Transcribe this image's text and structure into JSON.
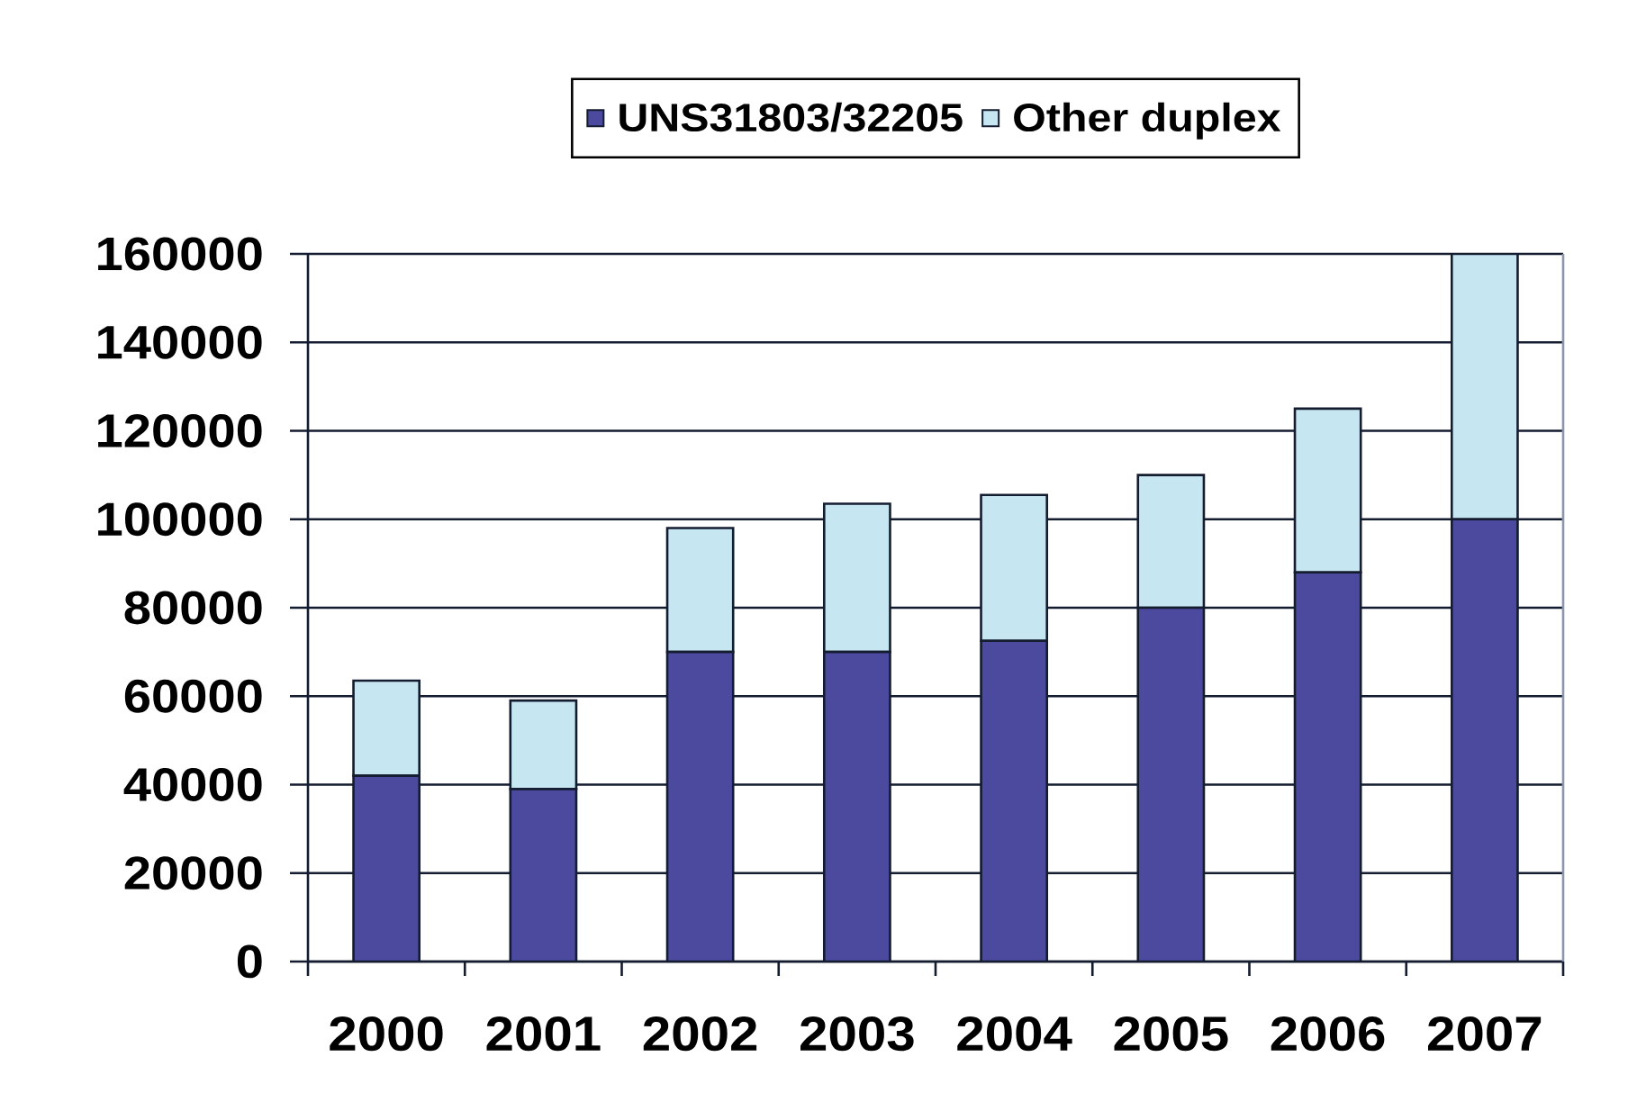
{
  "chart_data": {
    "type": "bar",
    "stacked": true,
    "categories": [
      "2000",
      "2001",
      "2002",
      "2003",
      "2004",
      "2005",
      "2006",
      "2007"
    ],
    "series": [
      {
        "name": "UNS31803/32205",
        "color": "#4b4a9e",
        "values": [
          42000,
          39000,
          70000,
          70000,
          72500,
          80000,
          88000,
          100000
        ]
      },
      {
        "name": "Other duplex",
        "color": "#c6e6f2",
        "values": [
          21500,
          20000,
          28000,
          33500,
          33000,
          30000,
          37000,
          60000
        ]
      }
    ],
    "ylim": [
      0,
      160000
    ],
    "yticks": [
      0,
      20000,
      40000,
      60000,
      80000,
      100000,
      120000,
      140000,
      160000
    ],
    "grid": "y",
    "legend": "top"
  }
}
